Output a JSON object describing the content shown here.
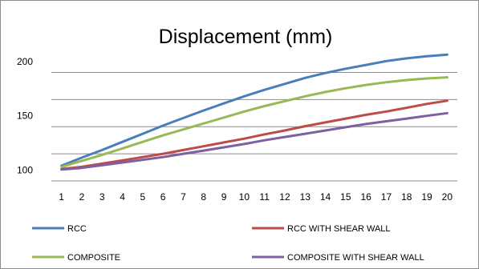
{
  "chart_data": {
    "type": "line",
    "title": "Displacement (mm)",
    "xlabel": "",
    "ylabel": "",
    "x": [
      1,
      2,
      3,
      4,
      5,
      6,
      7,
      8,
      9,
      10,
      11,
      12,
      13,
      14,
      15,
      16,
      17,
      18,
      19,
      20
    ],
    "ylim": [
      90,
      200
    ],
    "y_ticks": [
      100,
      150,
      200
    ],
    "grid": true,
    "legend_position": "bottom",
    "series": [
      {
        "name": "RCC",
        "color": "#4a7ebb",
        "values": [
          104,
          111.5,
          118.5,
          126,
          133.5,
          141,
          148,
          155,
          161.5,
          168,
          174,
          179.5,
          185,
          189.5,
          193.5,
          197,
          200.5,
          203,
          205,
          206.5
        ]
      },
      {
        "name": "RCC WITH SHEAR WALL",
        "color": "#be4b48",
        "values": [
          101,
          103,
          106,
          109,
          112,
          115,
          118.5,
          122,
          125.5,
          129,
          133,
          136.5,
          140.5,
          144,
          147.5,
          151,
          154,
          157.5,
          161,
          164
        ]
      },
      {
        "name": "COMPOSITE",
        "color": "#98b954",
        "values": [
          103,
          108.5,
          114,
          120,
          126,
          132,
          137.5,
          143,
          148.5,
          154,
          159,
          163.5,
          168,
          172,
          175.5,
          178.5,
          181,
          183,
          184.5,
          185.5
        ]
      },
      {
        "name": "COMPOSITE WITH SHEAR WALL",
        "color": "#7d60a0",
        "values": [
          100.5,
          102,
          104.5,
          107,
          109.5,
          112,
          115,
          118,
          121,
          124,
          127.5,
          130.5,
          133.5,
          136.5,
          139.5,
          142.5,
          145,
          147.5,
          150,
          152.5
        ]
      }
    ]
  }
}
